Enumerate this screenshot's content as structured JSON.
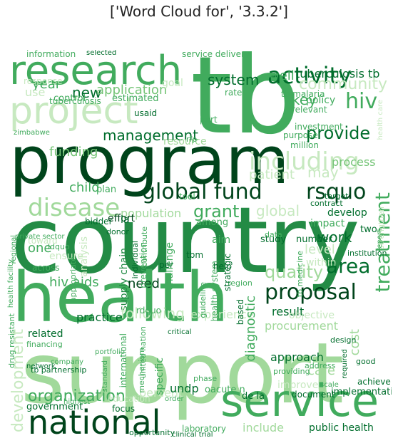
{
  "title": "['Word Cloud for', '3.3.2']",
  "palette": {
    "dark": "#00441b",
    "mid": "#238b45",
    "light": "#74c476",
    "pale": "#a1d99b",
    "faint": "#c7e9c0"
  },
  "words": [
    {
      "text": "country",
      "color": "#238b45"
    },
    {
      "text": "support",
      "color": "#a1d99b"
    },
    {
      "text": "program",
      "color": "#00441b"
    },
    {
      "text": "tb",
      "color": "#41ab5d"
    },
    {
      "text": "health",
      "color": "#41ab5d"
    },
    {
      "text": "research",
      "color": "#41ab5d"
    },
    {
      "text": "project",
      "color": "#c7e9c0"
    },
    {
      "text": "service",
      "color": "#41ab5d"
    },
    {
      "text": "national",
      "color": "#00441b"
    },
    {
      "text": "activity",
      "color": "#006d2c"
    },
    {
      "text": "global fund",
      "color": "#00441b"
    },
    {
      "text": "rsquo",
      "color": "#00441b"
    },
    {
      "text": "disease",
      "color": "#a1d99b"
    },
    {
      "text": "proposal",
      "color": "#00441b"
    },
    {
      "text": "management",
      "color": "#006d2c"
    },
    {
      "text": "including",
      "color": "#c7e9c0"
    },
    {
      "text": "hiv",
      "color": "#41ab5d"
    },
    {
      "text": "provide",
      "color": "#006d2c"
    },
    {
      "text": "area",
      "color": "#006d2c"
    },
    {
      "text": "quality",
      "color": "#a1d99b"
    },
    {
      "text": "grant",
      "color": "#41ab5d"
    },
    {
      "text": "development",
      "color": "#c7e9c0"
    },
    {
      "text": "organization",
      "color": "#41ab5d"
    },
    {
      "text": "treatment",
      "color": "#41ab5d"
    },
    {
      "text": "system",
      "color": "#006d2c"
    },
    {
      "text": "new",
      "color": "#006d2c"
    },
    {
      "text": "application",
      "color": "#74c476"
    },
    {
      "text": "funding",
      "color": "#74c476"
    },
    {
      "text": "year",
      "color": "#41ab5d"
    },
    {
      "text": "well",
      "color": "#41ab5d"
    },
    {
      "text": "tuberculosis tb",
      "color": "#006d2c"
    },
    {
      "text": "information",
      "color": "#41ab5d"
    },
    {
      "text": "community",
      "color": "#c7e9c0"
    },
    {
      "text": "policy",
      "color": "#41ab5d"
    },
    {
      "text": "key",
      "color": "#41ab5d"
    },
    {
      "text": "process",
      "color": "#74c476"
    },
    {
      "text": "patient",
      "color": "#c7e9c0"
    },
    {
      "text": "may",
      "color": "#c7e9c0"
    },
    {
      "text": "child",
      "color": "#41ab5d"
    },
    {
      "text": "impact",
      "color": "#41ab5d"
    },
    {
      "text": "develop",
      "color": "#006d2c"
    },
    {
      "text": "work",
      "color": "#006d2c"
    },
    {
      "text": "population",
      "color": "#a1d99b"
    },
    {
      "text": "global",
      "color": "#c7e9c0"
    },
    {
      "text": "level",
      "color": "#c7e9c0"
    },
    {
      "text": "one",
      "color": "#41ab5d"
    },
    {
      "text": "hiv aids",
      "color": "#41ab5d"
    },
    {
      "text": "supply chain",
      "color": "#238b45"
    },
    {
      "text": "need",
      "color": "#00441b"
    },
    {
      "text": "practice",
      "color": "#006d2c"
    },
    {
      "text": "following",
      "color": "#c7e9c0"
    },
    {
      "text": "experience",
      "color": "#c7e9c0"
    },
    {
      "text": "procurement",
      "color": "#a1d99b"
    },
    {
      "text": "result",
      "color": "#006d2c"
    },
    {
      "text": "diagnostic",
      "color": "#41ab5d"
    },
    {
      "text": "approach",
      "color": "#006d2c"
    },
    {
      "text": "care",
      "color": "#a1d99b"
    },
    {
      "text": "cost",
      "color": "#a1d99b"
    },
    {
      "text": "related",
      "color": "#006d2c"
    },
    {
      "text": "government",
      "color": "#006d2c"
    },
    {
      "text": "include",
      "color": "#a1d99b"
    },
    {
      "text": "public health",
      "color": "#006d2c"
    },
    {
      "text": "laboratory",
      "color": "#41ab5d"
    },
    {
      "text": "implementation",
      "color": "#006d2c"
    },
    {
      "text": "document",
      "color": "#006d2c"
    },
    {
      "text": "percent",
      "color": "#c7e9c0"
    },
    {
      "text": "undp",
      "color": "#006d2c"
    },
    {
      "text": "focus",
      "color": "#006d2c"
    },
    {
      "text": "oacute n",
      "color": "#41ab5d"
    },
    {
      "text": "improve",
      "color": "#c7e9c0"
    },
    {
      "text": "achieve",
      "color": "#006d2c"
    },
    {
      "text": "control",
      "color": "#41ab5d"
    },
    {
      "text": "estimated",
      "color": "#41ab5d"
    },
    {
      "text": "use",
      "color": "#c7e9c0"
    },
    {
      "text": "resource",
      "color": "#a1d99b"
    },
    {
      "text": "plan",
      "color": "#41ab5d"
    },
    {
      "text": "effort",
      "color": "#00441b"
    },
    {
      "text": "among",
      "color": "#41ab5d"
    },
    {
      "text": "study",
      "color": "#006d2c"
    },
    {
      "text": "number",
      "color": "#006d2c"
    },
    {
      "text": "two",
      "color": "#006d2c"
    },
    {
      "text": "report",
      "color": "#41ab5d"
    },
    {
      "text": "within",
      "color": "#c7e9c0"
    },
    {
      "text": "region",
      "color": "#41ab5d"
    },
    {
      "text": "objective",
      "color": "#c7e9c0"
    },
    {
      "text": "tb malaria",
      "color": "#41ab5d"
    },
    {
      "text": "relevant",
      "color": "#41ab5d"
    },
    {
      "text": "investment",
      "color": "#41ab5d"
    },
    {
      "text": "million",
      "color": "#41ab5d"
    },
    {
      "text": "purpose",
      "color": "#41ab5d"
    },
    {
      "text": "goal",
      "color": "#c7e9c0"
    },
    {
      "text": "rate",
      "color": "#41ab5d"
    },
    {
      "text": "part",
      "color": "#41ab5d"
    },
    {
      "text": "usaid",
      "color": "#006d2c"
    },
    {
      "text": "ensure",
      "color": "#c7e9c0"
    },
    {
      "text": "analysis",
      "color": "#c7e9c0"
    },
    {
      "text": "ldquo",
      "color": "#41ab5d"
    },
    {
      "text": "bidder",
      "color": "#006d2c"
    },
    {
      "text": "donor",
      "color": "#006d2c"
    },
    {
      "text": "across",
      "color": "#41ab5d"
    },
    {
      "text": "tuberculosis",
      "color": "#41ab5d"
    },
    {
      "text": "service delivery",
      "color": "#41ab5d"
    },
    {
      "text": "response",
      "color": "#c7e9c0"
    },
    {
      "text": "strategic",
      "color": "#006d2c"
    },
    {
      "text": "health system",
      "color": "#41ab5d"
    },
    {
      "text": "guideline",
      "color": "#41ab5d"
    },
    {
      "text": "tbm",
      "color": "#006d2c"
    },
    {
      "text": "based",
      "color": "#006d2c"
    },
    {
      "text": "prevention",
      "color": "#41ab5d"
    },
    {
      "text": "challenge",
      "color": "#41ab5d"
    },
    {
      "text": "toward",
      "color": "#c7e9c0"
    },
    {
      "text": "tb partnership",
      "color": "#006d2c"
    },
    {
      "text": "financing",
      "color": "#41ab5d"
    },
    {
      "text": "international",
      "color": "#41ab5d"
    },
    {
      "text": "united nation",
      "color": "#41ab5d"
    },
    {
      "text": "specific",
      "color": "#41ab5d"
    },
    {
      "text": "de la",
      "color": "#006d2c"
    },
    {
      "text": "strengthen",
      "color": "#c7e9c0"
    },
    {
      "text": "health care",
      "color": "#c7e9c0"
    },
    {
      "text": "network",
      "color": "#006d2c"
    },
    {
      "text": "education",
      "color": "#c7e9c0"
    },
    {
      "text": "opportunity",
      "color": "#006d2c"
    },
    {
      "text": "selected",
      "color": "#006d2c"
    },
    {
      "text": "regional",
      "color": "#41ab5d"
    },
    {
      "text": "drug resistant",
      "color": "#41ab5d"
    },
    {
      "text": "appropriate",
      "color": "#41ab5d"
    },
    {
      "text": "institution",
      "color": "#006d2c"
    },
    {
      "text": "contract",
      "color": "#006d2c"
    },
    {
      "text": "target",
      "color": "#006d2c"
    },
    {
      "text": "rfp",
      "color": "#41ab5d"
    },
    {
      "text": "mechanism",
      "color": "#41ab5d"
    },
    {
      "text": "design",
      "color": "#006d2c"
    },
    {
      "text": "address",
      "color": "#41ab5d"
    },
    {
      "text": "required",
      "color": "#006d2c"
    },
    {
      "text": "phase",
      "color": "#41ab5d"
    },
    {
      "text": "critical",
      "color": "#006d2c"
    },
    {
      "text": "la",
      "color": "#006d2c"
    },
    {
      "text": "individual",
      "color": "#006d2c"
    },
    {
      "text": "aim",
      "color": "#41ab5d"
    },
    {
      "text": "help",
      "color": "#006d2c"
    },
    {
      "text": "per",
      "color": "#006d2c"
    },
    {
      "text": "tool",
      "color": "#41ab5d"
    },
    {
      "text": "contribute",
      "color": "#41ab5d"
    },
    {
      "text": "rdquo",
      "color": "#41ab5d"
    },
    {
      "text": "tb medicine",
      "color": "#41ab5d"
    },
    {
      "text": "data",
      "color": "#41ab5d"
    },
    {
      "text": "providing",
      "color": "#41ab5d"
    },
    {
      "text": "highest",
      "color": "#41ab5d"
    },
    {
      "text": "good",
      "color": "#006d2c"
    },
    {
      "text": "company",
      "color": "#41ab5d"
    },
    {
      "text": "portfolio",
      "color": "#41ab5d"
    },
    {
      "text": "standard",
      "color": "#41ab5d"
    },
    {
      "text": "order",
      "color": "#41ab5d"
    },
    {
      "text": "private sector",
      "color": "#41ab5d"
    },
    {
      "text": "zimbabwe",
      "color": "#41ab5d"
    },
    {
      "text": "health facility",
      "color": "#41ab5d"
    },
    {
      "text": "scale",
      "color": "#41ab5d"
    },
    {
      "text": "clinical trial",
      "color": "#006d2c"
    }
  ]
}
